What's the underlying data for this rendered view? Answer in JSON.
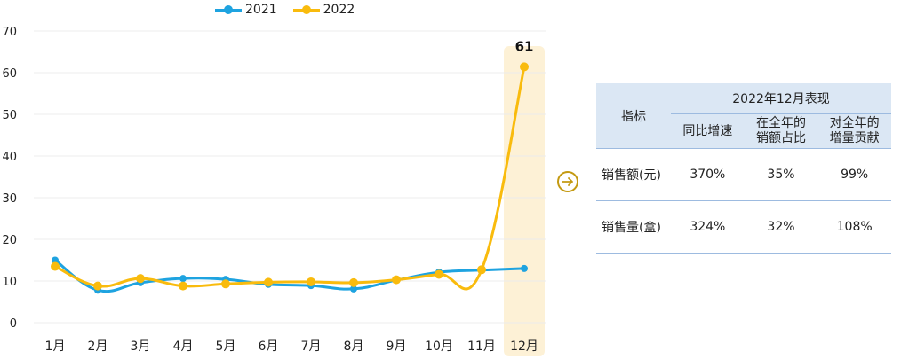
{
  "chart_data": {
    "type": "line",
    "categories": [
      "1月",
      "2月",
      "3月",
      "4月",
      "5月",
      "6月",
      "7月",
      "8月",
      "9月",
      "10月",
      "11月",
      "12月"
    ],
    "series": [
      {
        "name": "2021",
        "color": "#1ea3e0",
        "values": [
          15,
          7.8,
          9.6,
          10.6,
          10.4,
          9.2,
          8.9,
          8.1,
          10.2,
          12.1,
          12.6,
          13.0
        ]
      },
      {
        "name": "2022",
        "color": "#f9bb0d",
        "values": [
          13.5,
          8.8,
          10.6,
          8.8,
          9.3,
          9.7,
          9.8,
          9.6,
          10.3,
          11.6,
          12.7,
          61.4
        ]
      }
    ],
    "ylim": [
      0,
      70
    ],
    "yticks": [
      "0",
      "10",
      "20",
      "30",
      "40",
      "50",
      "60",
      "70"
    ],
    "data_label": {
      "category": "12月",
      "series": "2022",
      "text": "61"
    },
    "highlight_category": "12月",
    "highlight_color": "#fdf1d6",
    "grid": true,
    "legend_position": "top"
  },
  "table": {
    "metric_header": "指标",
    "group_header": "2022年12月表现",
    "sub_headers": [
      [
        "同比增速"
      ],
      [
        "在全年的",
        "销额占比"
      ],
      [
        "对全年的",
        "增量贡献"
      ]
    ],
    "rows": [
      {
        "metric": "销售额(元)",
        "values": [
          "370%",
          "35%",
          "99%"
        ]
      },
      {
        "metric": "销售量(盒)",
        "values": [
          "324%",
          "32%",
          "108%"
        ]
      }
    ]
  },
  "arrow_icon": "arrow-right-circle-icon",
  "accent_color": "#c49a12"
}
